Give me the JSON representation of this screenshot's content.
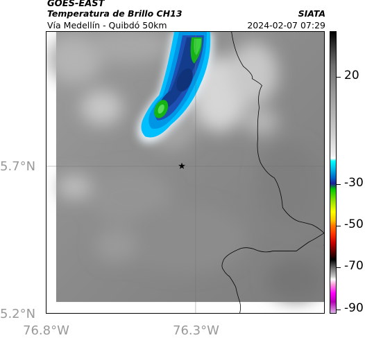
{
  "header": {
    "satellite": "GOES-EAST",
    "product": "Temperatura de Brillo CH13",
    "route": "Vía Medellín - Quibdó 50km",
    "organization": "SIATA",
    "timestamp": "2024-02-07 07:29"
  },
  "map": {
    "lat_labels": [
      "5.7°N",
      "5.2°N"
    ],
    "lon_labels": [
      "76.8°W",
      "76.3°W"
    ],
    "marker_icon": "star-icon"
  },
  "colorbar": {
    "tick_labels": [
      "20",
      "-30",
      "-50",
      "-70",
      "-90"
    ],
    "colors": [
      "#000000",
      "#ffffff",
      "#00ffff",
      "#0050c8",
      "#00c800",
      "#ffff00",
      "#ff6400",
      "#c80000",
      "#ff00ff"
    ]
  }
}
